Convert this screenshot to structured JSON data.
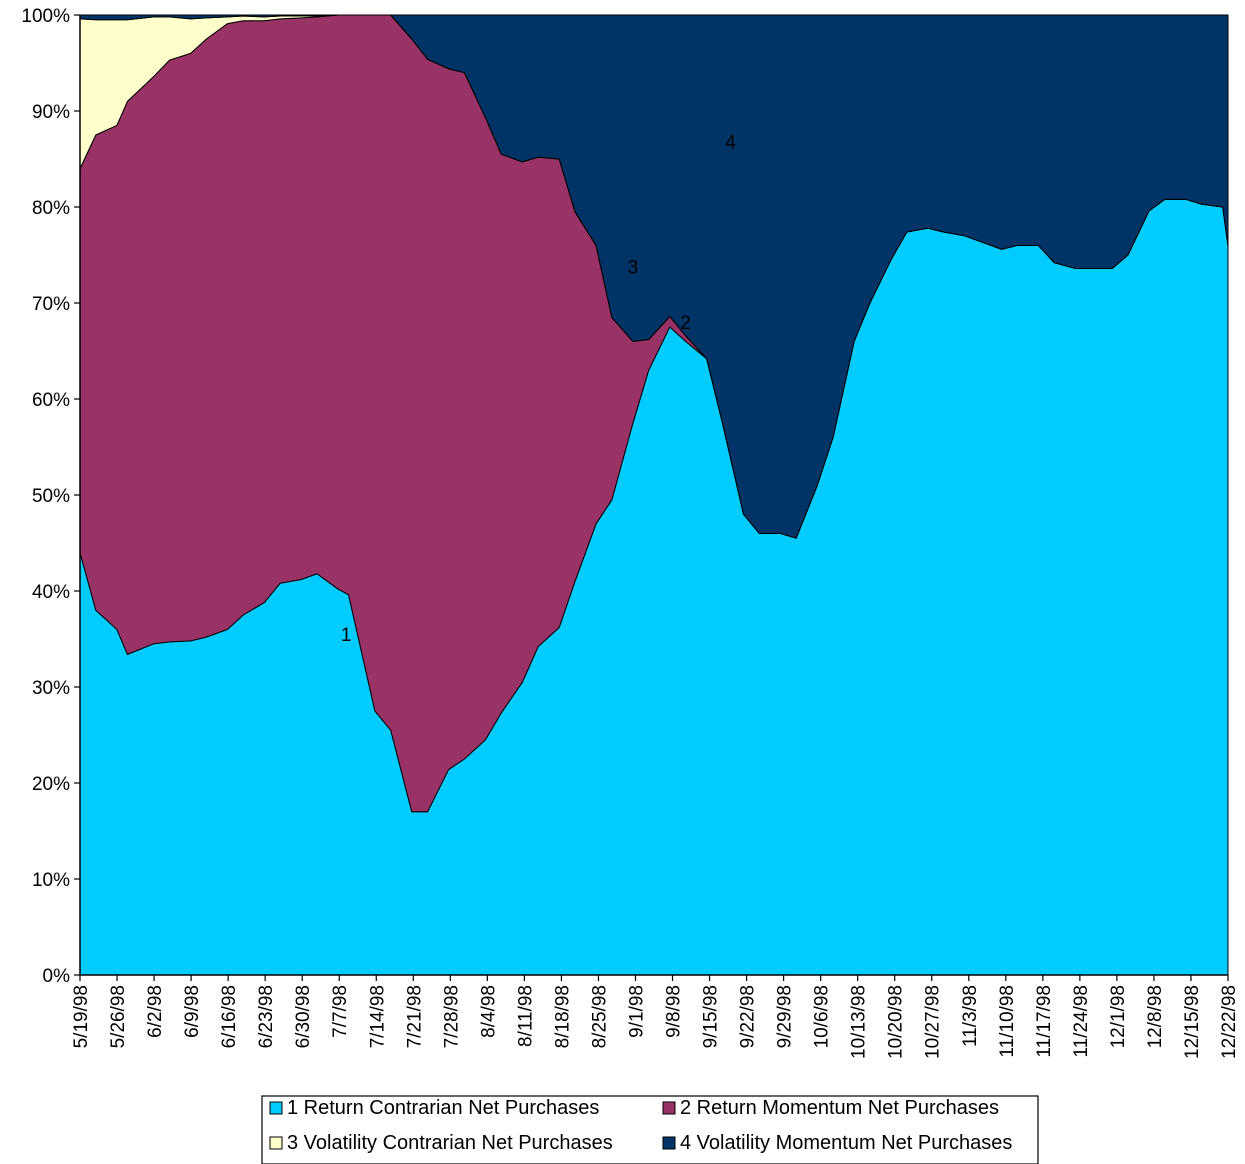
{
  "chart_data": {
    "type": "area",
    "stacked": "percent",
    "title": "",
    "xlabel": "",
    "ylabel": "",
    "ylim": [
      0,
      100
    ],
    "grid": false,
    "legend_position": "bottom",
    "y_ticks": [
      "0%",
      "10%",
      "20%",
      "30%",
      "40%",
      "50%",
      "60%",
      "70%",
      "80%",
      "90%",
      "100%"
    ],
    "x_ticks": [
      "5/19/98",
      "5/26/98",
      "6/2/98",
      "6/9/98",
      "6/16/98",
      "6/23/98",
      "6/30/98",
      "7/7/98",
      "7/14/98",
      "7/21/98",
      "7/28/98",
      "8/4/98",
      "8/11/98",
      "8/18/98",
      "8/25/98",
      "9/1/98",
      "9/8/98",
      "9/15/98",
      "9/22/98",
      "9/29/98",
      "10/6/98",
      "10/13/98",
      "10/20/98",
      "10/27/98",
      "11/3/98",
      "11/10/98",
      "11/17/98",
      "11/24/98",
      "12/1/98",
      "12/8/98",
      "12/15/98",
      "12/22/98"
    ],
    "x": [
      "5/19/98",
      "5/22/98",
      "5/26/98",
      "5/28/98",
      "6/2/98",
      "6/5/98",
      "6/9/98",
      "6/12/98",
      "6/16/98",
      "6/19/98",
      "6/23/98",
      "6/26/98",
      "6/30/98",
      "7/3/98",
      "7/7/98",
      "7/9/98",
      "7/14/98",
      "7/17/98",
      "7/21/98",
      "7/24/98",
      "7/28/98",
      "7/31/98",
      "8/4/98",
      "8/7/98",
      "8/11/98",
      "8/14/98",
      "8/18/98",
      "8/21/98",
      "8/25/98",
      "8/28/98",
      "9/1/98",
      "9/4/98",
      "9/8/98",
      "9/11/98",
      "9/15/98",
      "9/18/98",
      "9/22/98",
      "9/25/98",
      "9/29/98",
      "10/2/98",
      "10/6/98",
      "10/9/98",
      "10/13/98",
      "10/16/98",
      "10/20/98",
      "10/23/98",
      "10/27/98",
      "10/30/98",
      "11/3/98",
      "11/6/98",
      "11/10/98",
      "11/13/98",
      "11/17/98",
      "11/20/98",
      "11/24/98",
      "11/27/98",
      "12/1/98",
      "12/4/98",
      "12/8/98",
      "12/11/98",
      "12/15/98",
      "12/18/98",
      "12/22/98",
      "12/23/98"
    ],
    "series": [
      {
        "name": "Return Contrarian Net Purchases",
        "area_label": "1",
        "color": "#00ccff",
        "values": [
          44,
          38,
          36,
          33.4,
          34.5,
          34.7,
          34.8,
          35.2,
          36,
          37.5,
          38.8,
          40.8,
          41.2,
          41.8,
          40.2,
          39.6,
          27.5,
          25.5,
          17,
          17,
          21.4,
          22.5,
          24.5,
          27.3,
          30.5,
          34.2,
          36.2,
          41,
          47,
          49.5,
          57.5,
          63,
          67.5,
          66,
          64.2,
          57.5,
          48,
          46,
          46,
          45.5,
          51,
          56,
          66,
          70,
          74.5,
          77.4,
          77.8,
          77.4,
          77,
          76.4,
          75.6,
          76,
          76,
          74.2,
          73.6,
          73.6,
          73.6,
          75,
          79.6,
          80.8,
          80.8,
          80.3,
          80,
          76
        ]
      },
      {
        "name": "Return Momentum Net Purchases",
        "area_label": "2",
        "color": "#993366",
        "values": [
          40,
          49.5,
          52.5,
          57.6,
          59.1,
          60.6,
          61.2,
          62.3,
          63.1,
          61.9,
          60.6,
          58.8,
          58.5,
          58,
          59.8,
          60.4,
          72.5,
          74.5,
          80.5,
          78.4,
          73,
          71.5,
          64.8,
          58.2,
          54.2,
          51,
          48.8,
          38.5,
          29,
          19,
          8.5,
          3.2,
          1.1,
          0.6,
          0,
          0,
          0,
          0,
          0,
          0,
          0,
          0,
          0,
          0,
          0,
          0,
          0,
          0,
          0,
          0,
          0,
          0,
          0,
          0,
          0,
          0,
          0,
          0,
          0,
          0,
          0,
          0,
          0,
          0
        ]
      },
      {
        "name": "Volatility Contrarian Net Purchases",
        "area_label": "3",
        "color": "#ffffcc",
        "values": [
          15.6,
          12,
          11,
          8.5,
          6.2,
          4.5,
          3.6,
          2.2,
          0.7,
          0.5,
          0.4,
          0.3,
          0.2,
          0.1,
          0,
          0,
          0,
          0,
          0,
          0,
          0,
          0,
          0,
          0,
          0,
          0,
          0,
          0,
          0,
          0,
          0,
          0,
          0,
          0,
          0,
          0,
          0,
          0,
          0,
          0,
          0,
          0,
          0,
          0,
          0,
          0,
          0,
          0,
          0,
          0,
          0,
          0,
          0,
          0,
          0,
          0,
          0,
          0,
          0,
          0,
          0,
          0,
          0,
          0
        ]
      },
      {
        "name": "Volatility Momentum Net Purchases",
        "area_label": "4",
        "color": "#003366",
        "values": [
          0.4,
          0.5,
          0.5,
          0.5,
          0.2,
          0.2,
          0.4,
          0.3,
          0.2,
          0.1,
          0.2,
          0.1,
          0.1,
          0.1,
          0,
          0,
          0,
          0,
          2.5,
          4.6,
          5.6,
          6,
          10.7,
          14.5,
          15.3,
          14.8,
          15,
          20.5,
          24,
          31.5,
          34,
          33.8,
          31.4,
          33.4,
          35.8,
          42.5,
          52,
          54,
          54,
          54.5,
          49,
          44,
          34,
          30,
          25.5,
          22.6,
          22.2,
          22.6,
          23,
          23.6,
          24.4,
          24,
          24,
          25.8,
          26.4,
          26.4,
          26.4,
          25,
          20.4,
          19.2,
          19.2,
          19.7,
          20,
          24
        ]
      }
    ],
    "legend_entries": [
      "1 Return Contrarian Net Purchases",
      "2 Return Momentum Net Purchases",
      "3 Volatility Contrarian Net Purchases",
      "4 Volatility Momentum Net Purchases"
    ]
  }
}
